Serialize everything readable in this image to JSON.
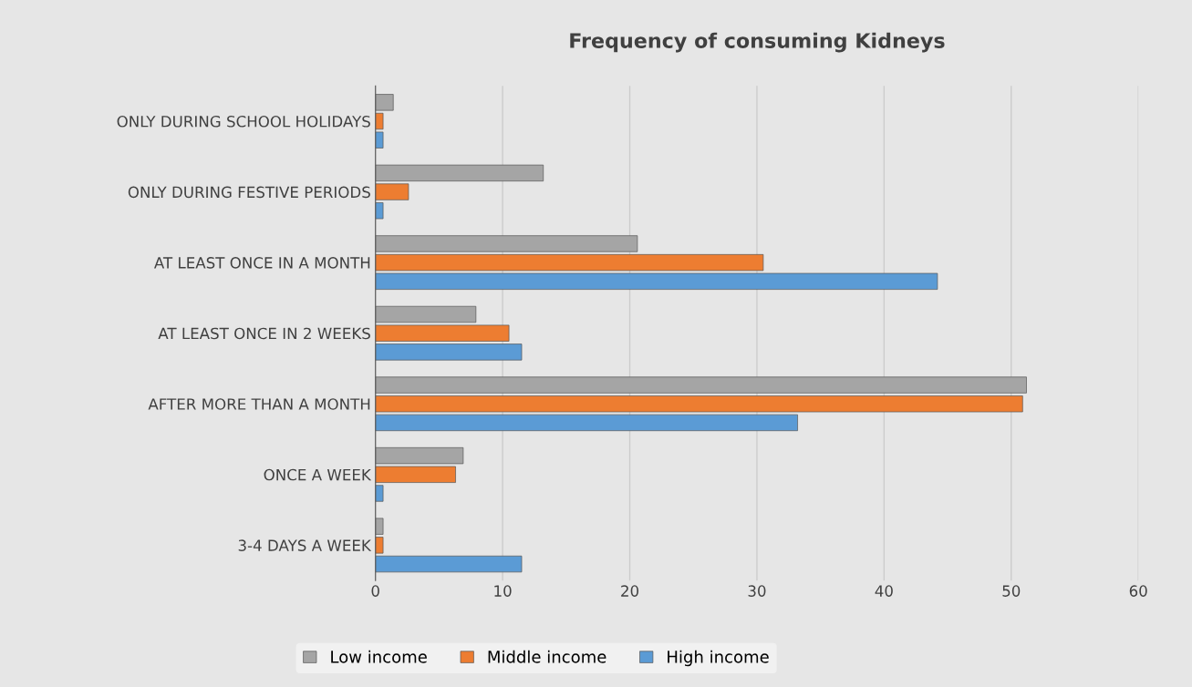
{
  "chart_data": {
    "type": "bar",
    "orientation": "horizontal",
    "title": "Frequency of consuming Kidneys",
    "categories": [
      "ONLY DURING SCHOOL HOLIDAYS",
      "ONLY DURING FESTIVE PERIODS",
      "AT LEAST ONCE IN A MONTH",
      "AT LEAST ONCE IN 2 WEEKS",
      "AFTER MORE THAN A MONTH",
      "ONCE A WEEK",
      "3-4 DAYS A WEEK"
    ],
    "series": [
      {
        "name": "Low income",
        "color": "#a5a5a5",
        "values": [
          1.4,
          13.2,
          20.6,
          7.9,
          51.2,
          6.9,
          0.6
        ]
      },
      {
        "name": "Middle income",
        "color": "#ed7d31",
        "values": [
          0.6,
          2.6,
          30.5,
          10.5,
          50.9,
          6.3,
          0.6
        ]
      },
      {
        "name": "High income",
        "color": "#5b9bd5",
        "values": [
          0.6,
          0.6,
          44.2,
          11.5,
          33.2,
          0.6,
          11.5
        ]
      }
    ],
    "xlim": [
      0,
      60
    ],
    "xticks": [
      0,
      10,
      20,
      30,
      40,
      50,
      60
    ],
    "grid": "x",
    "legend": "bottom"
  }
}
